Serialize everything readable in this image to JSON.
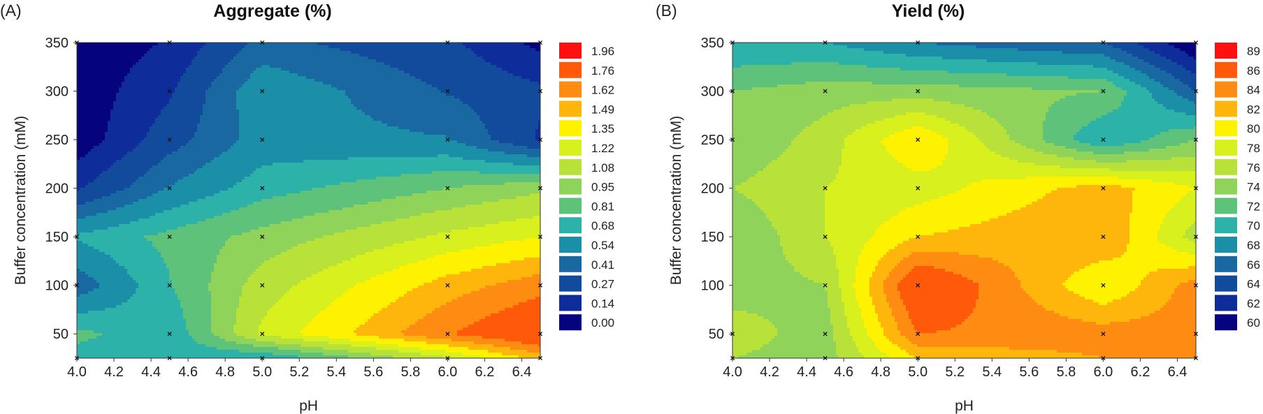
{
  "chart_data": [
    {
      "type": "contour",
      "panel_label": "(A)",
      "title": "Aggregate (%)",
      "xlabel": "pH",
      "ylabel": "Buffer concentration (mM)",
      "xlim": [
        4.0,
        6.5
      ],
      "ylim": [
        25,
        350
      ],
      "xticks": [
        4.0,
        4.2,
        4.4,
        4.6,
        4.8,
        5.0,
        5.2,
        5.4,
        5.6,
        5.8,
        6.0,
        6.2,
        6.4
      ],
      "yticks": [
        50,
        100,
        150,
        200,
        250,
        300,
        350
      ],
      "grid_x": [
        4.0,
        4.5,
        5.0,
        6.0,
        6.5
      ],
      "grid_y": [
        25,
        50,
        100,
        150,
        200,
        250,
        300,
        350
      ],
      "z": [
        [
          0.75,
          0.72,
          0.68,
          1.2,
          1.55
        ],
        [
          0.85,
          0.7,
          1.25,
          1.75,
          1.96
        ],
        [
          0.45,
          0.8,
          1.15,
          1.55,
          1.7
        ],
        [
          0.7,
          0.85,
          1.0,
          1.25,
          1.35
        ],
        [
          0.25,
          0.55,
          0.75,
          0.95,
          1.05
        ],
        [
          0.05,
          0.35,
          0.6,
          0.55,
          0.25
        ],
        [
          0.05,
          0.25,
          0.65,
          0.4,
          0.3
        ],
        [
          0.05,
          0.15,
          0.45,
          0.3,
          0.1
        ]
      ],
      "levels": [
        0.0,
        0.14,
        0.27,
        0.41,
        0.54,
        0.68,
        0.81,
        0.95,
        1.08,
        1.22,
        1.35,
        1.49,
        1.62,
        1.76,
        1.96
      ],
      "legend_labels": [
        "1.96",
        "1.76",
        "1.62",
        "1.49",
        "1.35",
        "1.22",
        "1.08",
        "0.95",
        "0.81",
        "0.68",
        "0.54",
        "0.41",
        "0.27",
        "0.14",
        "0.00"
      ],
      "legend_colors": [
        "#ff1010",
        "#ff5a0a",
        "#ff8c12",
        "#ffb60c",
        "#fff200",
        "#d8f01e",
        "#b8e23a",
        "#8fd35a",
        "#5ec27a",
        "#2cb2a8",
        "#1c8fa8",
        "#1a68a2",
        "#124a9c",
        "#0e2c9a",
        "#06037f"
      ],
      "design_points": [
        [
          4.0,
          25
        ],
        [
          4.5,
          25
        ],
        [
          5.0,
          25
        ],
        [
          6.0,
          25
        ],
        [
          6.5,
          25
        ],
        [
          4.5,
          50
        ],
        [
          5.0,
          50
        ],
        [
          6.0,
          50
        ],
        [
          6.5,
          50
        ],
        [
          4.0,
          100
        ],
        [
          4.5,
          100
        ],
        [
          5.0,
          100
        ],
        [
          6.0,
          100
        ],
        [
          6.5,
          100
        ],
        [
          4.0,
          150
        ],
        [
          4.5,
          150
        ],
        [
          5.0,
          150
        ],
        [
          6.0,
          150
        ],
        [
          6.5,
          150
        ],
        [
          4.5,
          200
        ],
        [
          5.0,
          200
        ],
        [
          6.0,
          200
        ],
        [
          6.5,
          200
        ],
        [
          4.5,
          250
        ],
        [
          5.0,
          250
        ],
        [
          6.0,
          250
        ],
        [
          6.5,
          250
        ],
        [
          4.5,
          300
        ],
        [
          5.0,
          300
        ],
        [
          6.0,
          300
        ],
        [
          6.5,
          300
        ],
        [
          4.0,
          350
        ],
        [
          4.5,
          350
        ],
        [
          5.0,
          350
        ],
        [
          6.0,
          350
        ],
        [
          6.5,
          350
        ]
      ]
    },
    {
      "type": "contour",
      "panel_label": "(B)",
      "title": "Yield (%)",
      "xlabel": "pH",
      "ylabel": "Buffer concentration (mM)",
      "xlim": [
        4.0,
        6.5
      ],
      "ylim": [
        25,
        350
      ],
      "xticks": [
        4.0,
        4.2,
        4.4,
        4.6,
        4.8,
        5.0,
        5.2,
        5.4,
        5.6,
        5.8,
        6.0,
        6.2,
        6.4
      ],
      "yticks": [
        50,
        100,
        150,
        200,
        250,
        300,
        350
      ],
      "grid_x": [
        4.0,
        4.5,
        5.0,
        6.0,
        6.5
      ],
      "grid_y": [
        25,
        50,
        100,
        150,
        200,
        250,
        300,
        350
      ],
      "z": [
        [
          76,
          75,
          82,
          84,
          84
        ],
        [
          77,
          75,
          86,
          85,
          85
        ],
        [
          75,
          76,
          89,
          80,
          85
        ],
        [
          74,
          78,
          82,
          84,
          77
        ],
        [
          76,
          78,
          79,
          83,
          80
        ],
        [
          74,
          77,
          82,
          70,
          74
        ],
        [
          74,
          75,
          75,
          74,
          66
        ],
        [
          70,
          70,
          68,
          66,
          60
        ]
      ],
      "levels": [
        60,
        62,
        64,
        66,
        68,
        70,
        72,
        74,
        76,
        78,
        80,
        82,
        84,
        86,
        89
      ],
      "legend_labels": [
        "89",
        "86",
        "84",
        "82",
        "80",
        "78",
        "76",
        "74",
        "72",
        "70",
        "68",
        "66",
        "64",
        "62",
        "60"
      ],
      "legend_colors": [
        "#ff1010",
        "#ff5a0a",
        "#ff8c12",
        "#ffb60c",
        "#fff200",
        "#d8f01e",
        "#b8e23a",
        "#8fd35a",
        "#5ec27a",
        "#2cb2a8",
        "#1c8fa8",
        "#1a68a2",
        "#124a9c",
        "#0e2c9a",
        "#06037f"
      ],
      "design_points": [
        [
          4.0,
          25
        ],
        [
          4.5,
          25
        ],
        [
          5.0,
          25
        ],
        [
          6.0,
          25
        ],
        [
          6.5,
          25
        ],
        [
          4.0,
          50
        ],
        [
          4.5,
          50
        ],
        [
          5.0,
          50
        ],
        [
          6.0,
          50
        ],
        [
          6.5,
          50
        ],
        [
          4.5,
          100
        ],
        [
          5.0,
          100
        ],
        [
          6.0,
          100
        ],
        [
          6.5,
          100
        ],
        [
          4.5,
          150
        ],
        [
          5.0,
          150
        ],
        [
          6.0,
          150
        ],
        [
          6.5,
          150
        ],
        [
          4.5,
          200
        ],
        [
          5.0,
          200
        ],
        [
          6.0,
          200
        ],
        [
          6.5,
          200
        ],
        [
          4.0,
          250
        ],
        [
          5.0,
          250
        ],
        [
          6.0,
          250
        ],
        [
          6.5,
          250
        ],
        [
          4.0,
          300
        ],
        [
          4.5,
          300
        ],
        [
          5.0,
          300
        ],
        [
          6.0,
          300
        ],
        [
          6.5,
          300
        ],
        [
          4.0,
          350
        ],
        [
          4.5,
          350
        ],
        [
          5.0,
          350
        ],
        [
          6.0,
          350
        ],
        [
          6.5,
          350
        ]
      ]
    }
  ]
}
